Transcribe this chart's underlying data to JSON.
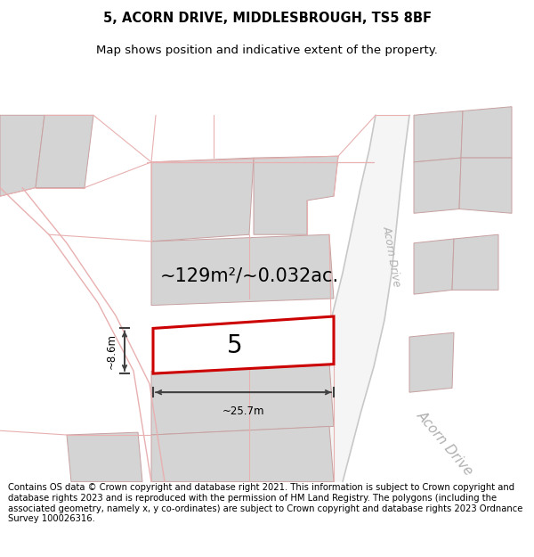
{
  "title_line1": "5, ACORN DRIVE, MIDDLESBROUGH, TS5 8BF",
  "title_line2": "Map shows position and indicative extent of the property.",
  "footer_text": "Contains OS data © Crown copyright and database right 2021. This information is subject to Crown copyright and database rights 2023 and is reproduced with the permission of HM Land Registry. The polygons (including the associated geometry, namely x, y co-ordinates) are subject to Crown copyright and database rights 2023 Ordnance Survey 100026316.",
  "area_text": "~129m²/~0.032ac.",
  "width_label": "~25.7m",
  "height_label": "~8.6m",
  "number_label": "5",
  "bg_color": "#ffffff",
  "map_bg": "#ffffff",
  "plot_fill": "#ffffff",
  "plot_edge": "#cc0000",
  "neighbor_fill": "#d4d4d4",
  "neighbor_edge": "#c8a0a0",
  "road_line_color": "#e8b0b0",
  "road_fill_color": "#f5f5f5",
  "road_label_color": "#b0b0b0",
  "dim_line_color": "#404040",
  "title_fontsize": 10.5,
  "subtitle_fontsize": 9.5,
  "footer_fontsize": 7.2,
  "area_fontsize": 15,
  "number_fontsize": 20,
  "label_fontsize": 8.5
}
